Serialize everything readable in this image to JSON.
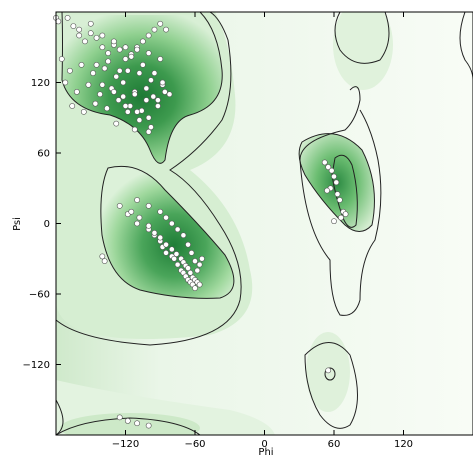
{
  "chart_data": {
    "type": "scatter",
    "xlabel": "Phi",
    "ylabel": "Psi",
    "xlim": [
      -180,
      180
    ],
    "ylim": [
      -180,
      180
    ],
    "x_ticks": [
      -120,
      -60,
      0,
      60,
      120
    ],
    "y_ticks": [
      -120,
      -60,
      0,
      60,
      120
    ],
    "grid": false,
    "background": "density contour map (green)",
    "colors": {
      "high_density": "#1e7a35",
      "mid_density": "#7ccb82",
      "low_density": "#eaf6e8",
      "contour": "#222222",
      "point_fill": "#ffffff",
      "point_edge": "#555555"
    },
    "series": [
      {
        "x": [
          -180,
          -178,
          -170,
          -165,
          -160,
          -155,
          -150,
          -145,
          -140,
          -135,
          -130,
          -125,
          -120,
          -115,
          -110,
          -105,
          -100,
          -95,
          -90,
          -85,
          -175,
          -168,
          -158,
          -148,
          -138,
          -128,
          -118,
          -108,
          -98,
          -88,
          -172,
          -162,
          -152,
          -142,
          -132,
          -122,
          -112,
          -102,
          -92,
          -82,
          -166,
          -156,
          -146,
          -136,
          -126,
          -116,
          -106,
          -96,
          -86,
          -160,
          -150,
          -140,
          -130,
          -120,
          -110,
          -100,
          -90,
          -145,
          -135,
          -125,
          -115,
          -105,
          -95,
          -88,
          -140,
          -130,
          -122,
          -112,
          -102,
          -120,
          -110,
          -100,
          -92,
          -118,
          -108,
          -98,
          -128,
          -112,
          -100,
          -125,
          -118,
          -110,
          -100,
          -95,
          -90,
          -88,
          -85,
          -80,
          -78,
          -75,
          -72,
          -70,
          -68,
          -66,
          -64,
          -62,
          -60,
          -58,
          -56,
          -54,
          -115,
          -108,
          -100,
          -95,
          -90,
          -85,
          -80,
          -76,
          -72,
          -70,
          -68,
          -66,
          -64,
          -62,
          -60,
          -58,
          -56,
          -110,
          -100,
          -90,
          -85,
          -80,
          -75,
          -70,
          -66,
          -63,
          -60,
          52,
          55,
          58,
          60,
          62,
          57,
          54,
          63,
          65,
          68,
          70,
          66,
          60,
          -140,
          -138,
          55,
          -125,
          -118,
          -110,
          -100
        ],
        "y": [
          175,
          172,
          175,
          168,
          160,
          155,
          162,
          158,
          150,
          145,
          152,
          148,
          140,
          144,
          150,
          155,
          160,
          165,
          170,
          165,
          140,
          130,
          135,
          128,
          132,
          125,
          130,
          128,
          122,
          118,
          120,
          112,
          118,
          110,
          115,
          108,
          112,
          105,
          100,
          110,
          100,
          95,
          102,
          98,
          105,
          100,
          96,
          108,
          112,
          165,
          170,
          160,
          155,
          150,
          148,
          145,
          140,
          135,
          138,
          130,
          142,
          135,
          128,
          120,
          118,
          112,
          120,
          110,
          115,
          100,
          95,
          90,
          105,
          95,
          88,
          82,
          85,
          80,
          78,
          15,
          8,
          0,
          -5,
          -10,
          -15,
          -20,
          -25,
          -28,
          -30,
          -35,
          -40,
          -42,
          -45,
          -48,
          -50,
          -52,
          -55,
          -40,
          -35,
          -30,
          10,
          5,
          -2,
          -8,
          -12,
          -18,
          -22,
          -26,
          -30,
          -33,
          -36,
          -38,
          -42,
          -46,
          -48,
          -50,
          -52,
          20,
          15,
          10,
          5,
          0,
          -5,
          -10,
          -18,
          -25,
          -32,
          52,
          48,
          45,
          40,
          35,
          30,
          28,
          25,
          20,
          10,
          8,
          5,
          2,
          -28,
          -32,
          -125,
          -165,
          -168,
          -170,
          -172
        ]
      }
    ]
  }
}
